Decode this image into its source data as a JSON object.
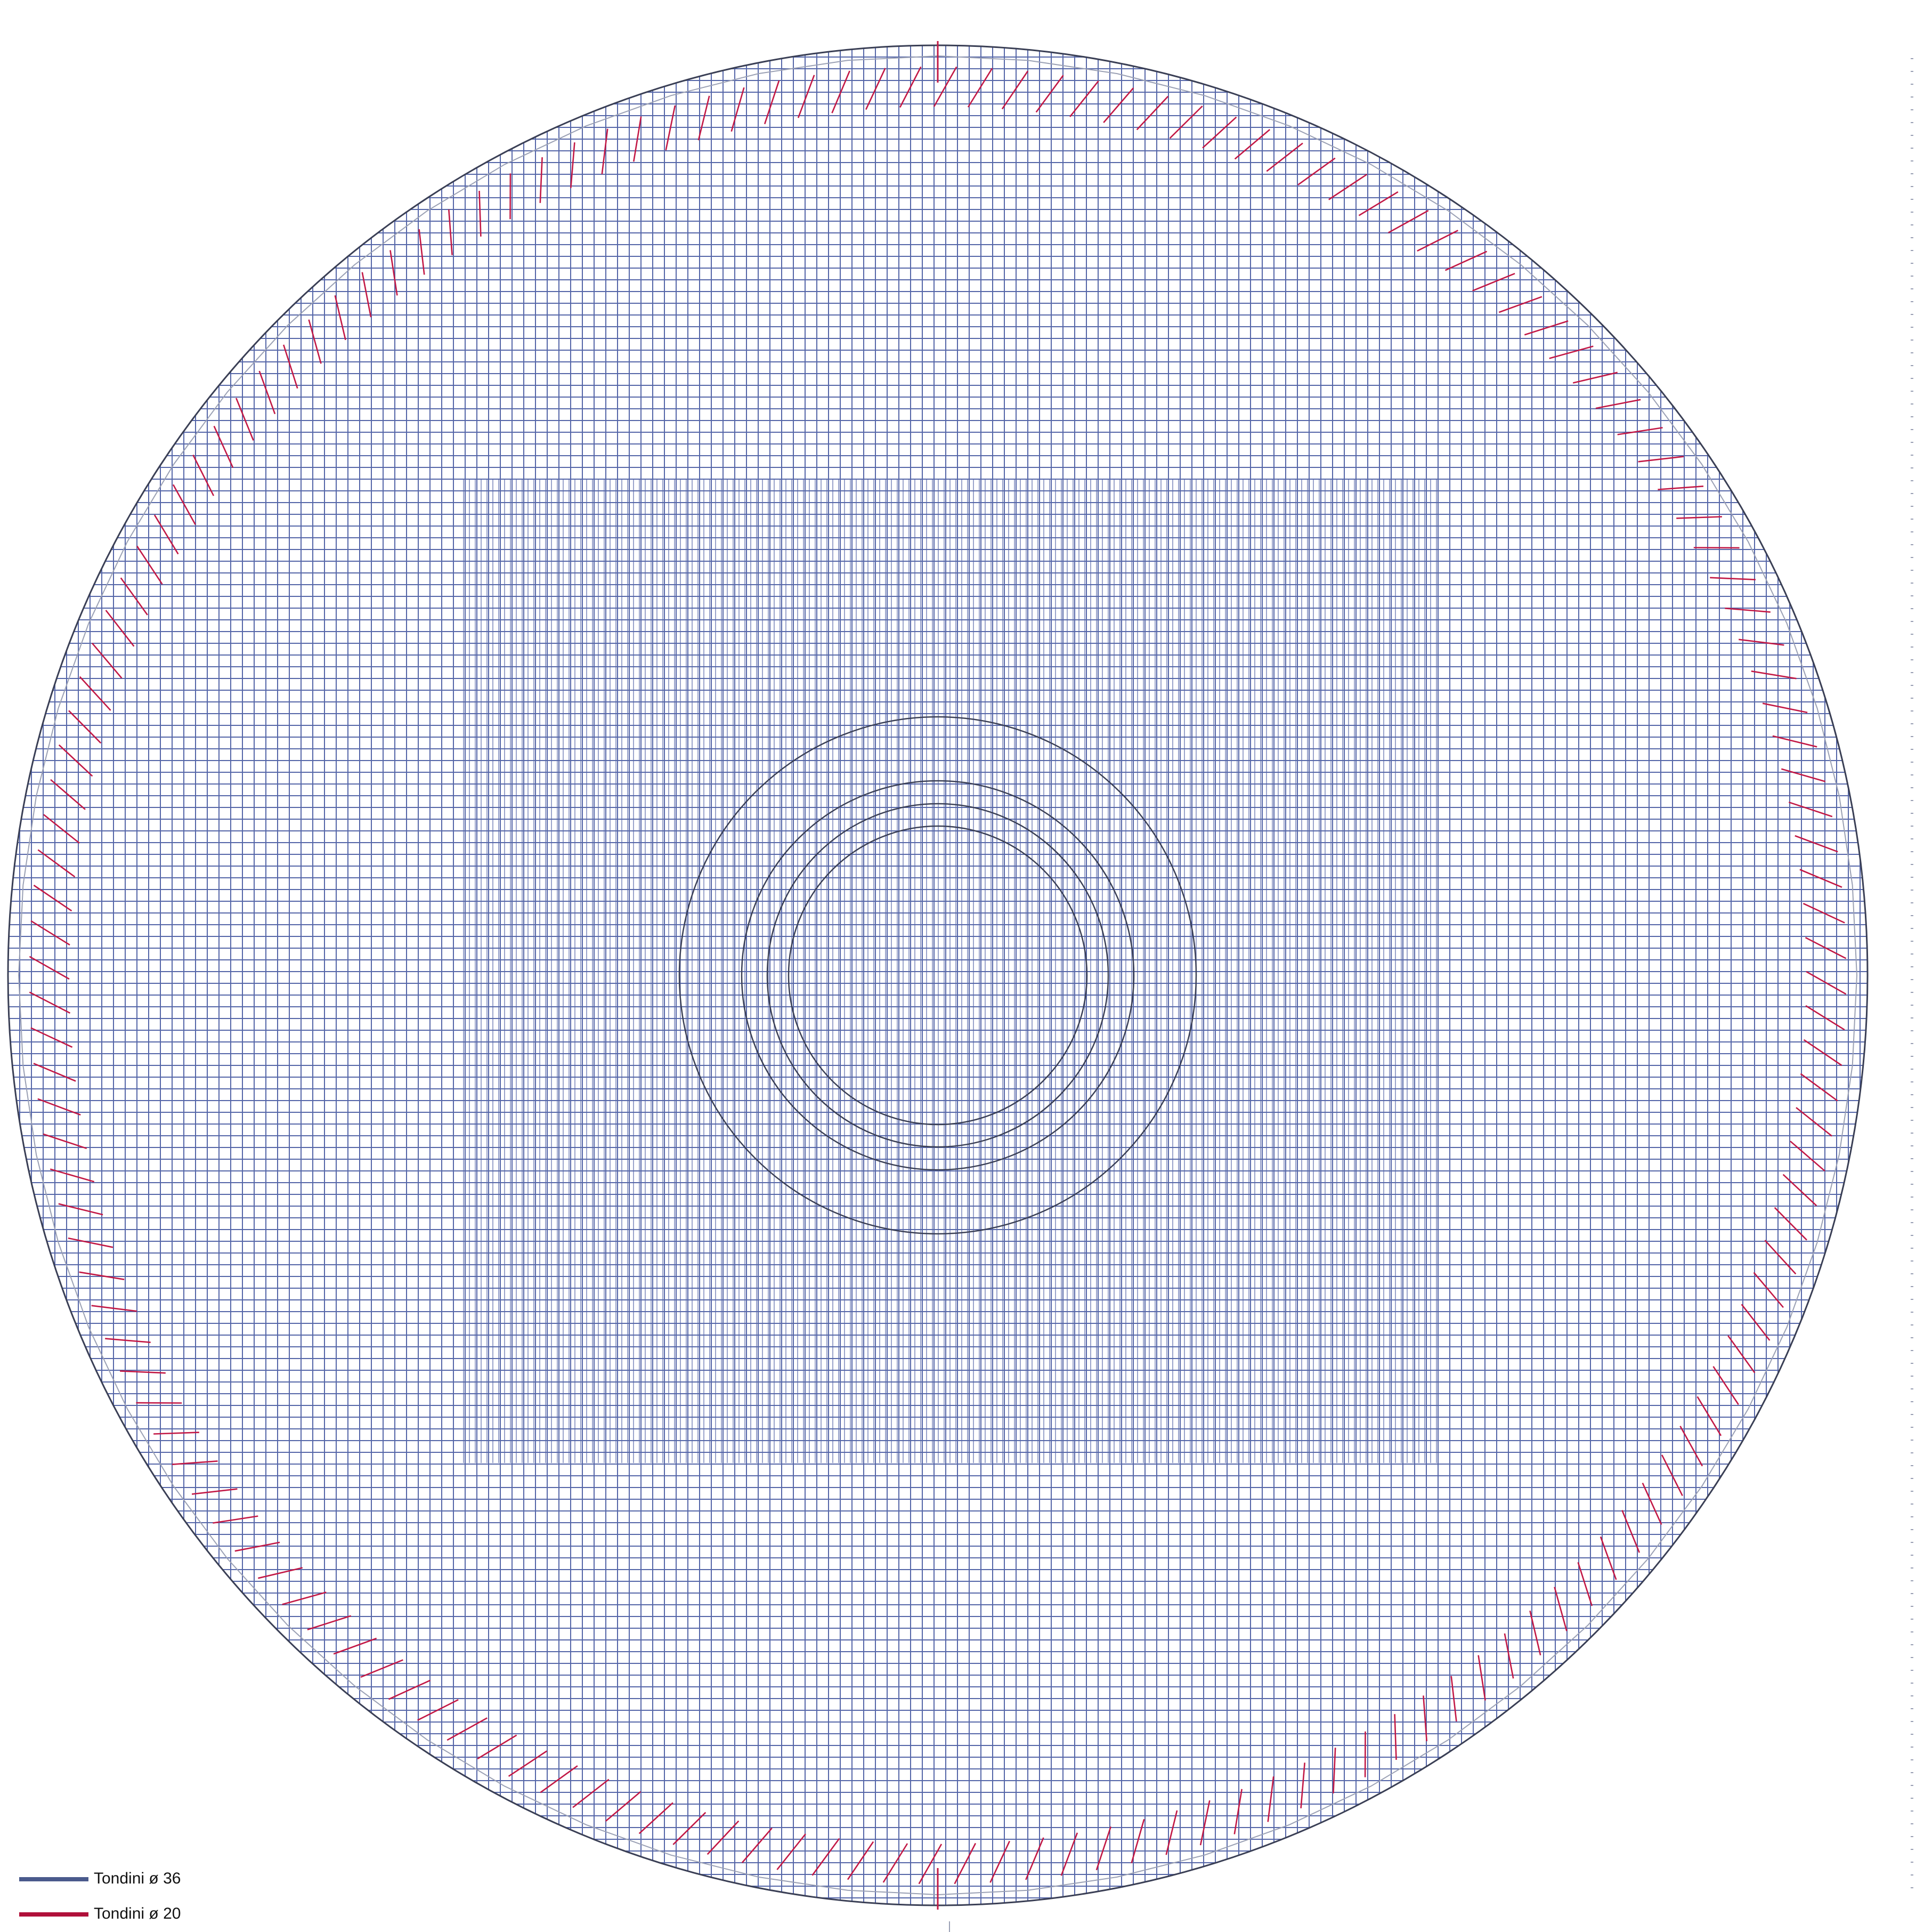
{
  "legend": {
    "items": [
      {
        "label": "Tondini ø 36",
        "color": "#4a5a8c"
      },
      {
        "label": "Tondini ø 20",
        "color": "#b0103a"
      }
    ]
  },
  "colors": {
    "outline": "#3a3f55",
    "grid": "#5566a8",
    "radial": "#c21845",
    "guide": "#9aa0b4"
  }
}
